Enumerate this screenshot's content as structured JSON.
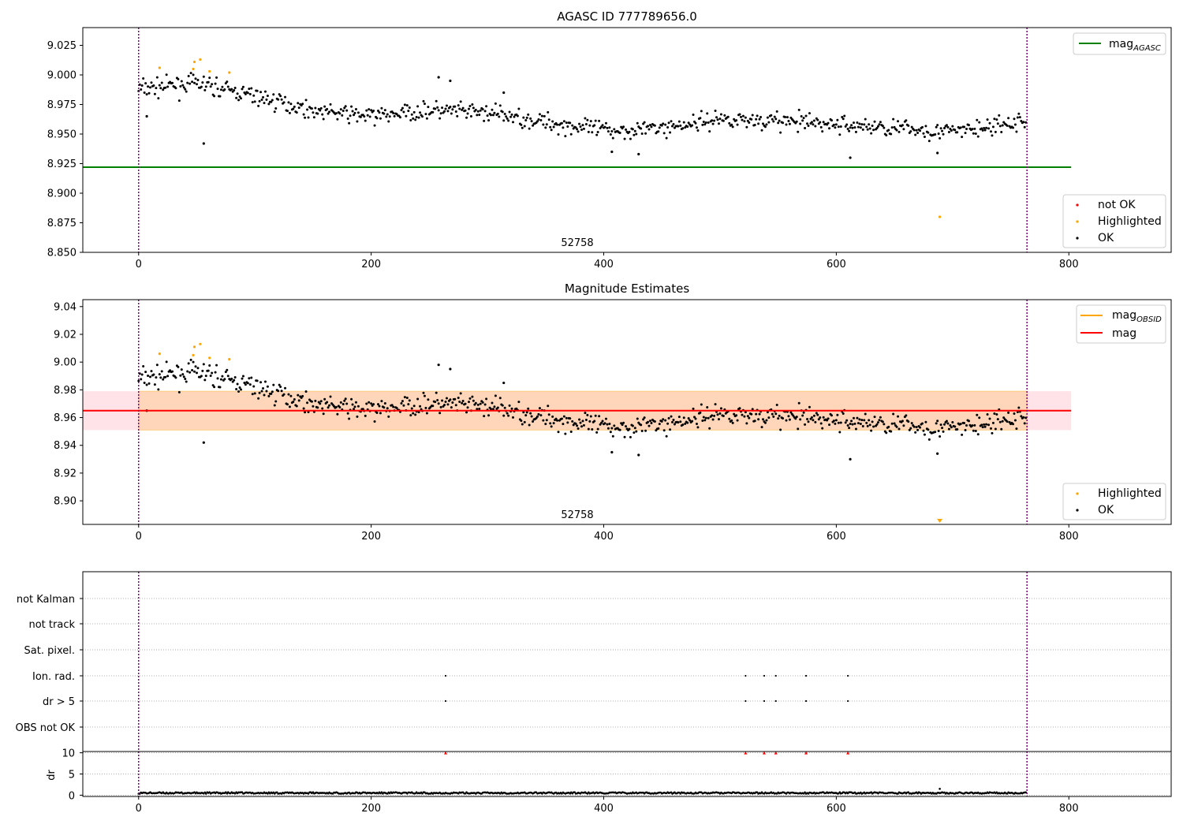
{
  "figure": {
    "panels": [
      {
        "title": "AGASC ID 777789656.0",
        "annotation": "52758"
      },
      {
        "title": "Magnitude Estimates",
        "annotation": "52758"
      },
      {
        "title": ""
      }
    ]
  },
  "legends": {
    "top_right": [
      {
        "label_main": "mag",
        "label_sub": "AGASC",
        "color": "#008000"
      }
    ],
    "top_bottom": [
      {
        "label": "not OK",
        "color": "#ff0000"
      },
      {
        "label": "Highlighted",
        "color": "#ffa500"
      },
      {
        "label": "OK",
        "color": "#000000"
      }
    ],
    "mid_right": [
      {
        "label_main": "mag",
        "label_sub": "OBSID",
        "color": "#ffa500"
      },
      {
        "label_main": "mag",
        "label_sub": "",
        "color": "#ff0000"
      }
    ],
    "mid_bottom": [
      {
        "label": "Highlighted",
        "color": "#ffa500"
      },
      {
        "label": "OK",
        "color": "#000000"
      }
    ]
  },
  "chart_data": [
    {
      "type": "scatter",
      "title": "AGASC ID 777789656.0",
      "xlim": [
        -48,
        888
      ],
      "ylim": [
        8.85,
        9.04
      ],
      "xticks": [
        "0",
        "200",
        "400",
        "600",
        "800"
      ],
      "yticks": [
        "8.850",
        "8.875",
        "8.900",
        "8.925",
        "8.950",
        "8.975",
        "9.000",
        "9.025"
      ],
      "vlines": [
        0,
        764
      ],
      "hline": {
        "name": "mag_AGASC",
        "y": 8.922,
        "x": [
          -48,
          802
        ],
        "color": "#008000"
      },
      "trend": {
        "x": [
          0,
          50,
          100,
          150,
          200,
          250,
          300,
          350,
          400,
          450,
          500,
          550,
          600,
          650,
          700,
          750,
          764
        ],
        "y": [
          8.988,
          8.993,
          8.982,
          8.97,
          8.965,
          8.97,
          8.968,
          8.96,
          8.953,
          8.955,
          8.963,
          8.961,
          8.958,
          8.955,
          8.952,
          8.958,
          8.962
        ]
      },
      "n_points": 764,
      "scatter_spread": 0.008,
      "series": [
        {
          "name": "Highlighted",
          "color": "#ffa500",
          "points": [
            [
              18,
              9.006
            ],
            [
              47,
              9.005
            ],
            [
              48,
              9.011
            ],
            [
              53,
              9.013
            ],
            [
              61,
              9.003
            ],
            [
              78,
              9.002
            ],
            [
              689,
              8.88
            ]
          ]
        },
        {
          "name": "OK-outliers",
          "color": "#000000",
          "points": [
            [
              7,
              8.965
            ],
            [
              56,
              8.942
            ],
            [
              258,
              8.998
            ],
            [
              268,
              8.995
            ],
            [
              314,
              8.985
            ],
            [
              430,
              8.933
            ],
            [
              407,
              8.935
            ],
            [
              612,
              8.93
            ],
            [
              687,
              8.934
            ]
          ]
        }
      ]
    },
    {
      "type": "scatter",
      "title": "Magnitude Estimates",
      "xlim": [
        -48,
        888
      ],
      "ylim": [
        8.883,
        9.045
      ],
      "xticks": [
        "0",
        "200",
        "400",
        "600",
        "800"
      ],
      "yticks": [
        "8.90",
        "8.92",
        "8.94",
        "8.96",
        "8.98",
        "9.00",
        "9.02",
        "9.04"
      ],
      "vlines": [
        0,
        764
      ],
      "band": {
        "y": [
          8.951,
          8.979
        ],
        "x": [
          -48,
          802
        ]
      },
      "hline": {
        "name": "mag",
        "y": 8.965,
        "x": [
          -48,
          802
        ],
        "color": "#ff0000"
      },
      "mag_obsid": {
        "y": 8.965,
        "color": "#ffa500"
      },
      "marker": {
        "x": 689,
        "y": 8.885,
        "color": "#ffa500"
      }
    },
    {
      "type": "scatter",
      "categories": [
        "not Kalman",
        "not track",
        "Sat. pixel.",
        "Ion. rad.",
        "dr > 5",
        "OBS not OK"
      ],
      "flag_x": [
        264,
        522,
        538,
        548,
        574,
        610
      ],
      "flag_rows": [
        "Ion. rad.",
        "dr > 5"
      ],
      "xlim": [
        -48,
        888
      ],
      "xticks": [
        "0",
        "200",
        "400",
        "600",
        "800"
      ],
      "dr": {
        "ylabel": "dr",
        "yticks": [
          "0",
          "5",
          "10"
        ],
        "ylim": [
          0,
          10
        ],
        "markers_at_top": [
          264,
          522,
          538,
          548,
          574,
          610
        ],
        "outlier": [
          689,
          1.5
        ]
      }
    }
  ]
}
